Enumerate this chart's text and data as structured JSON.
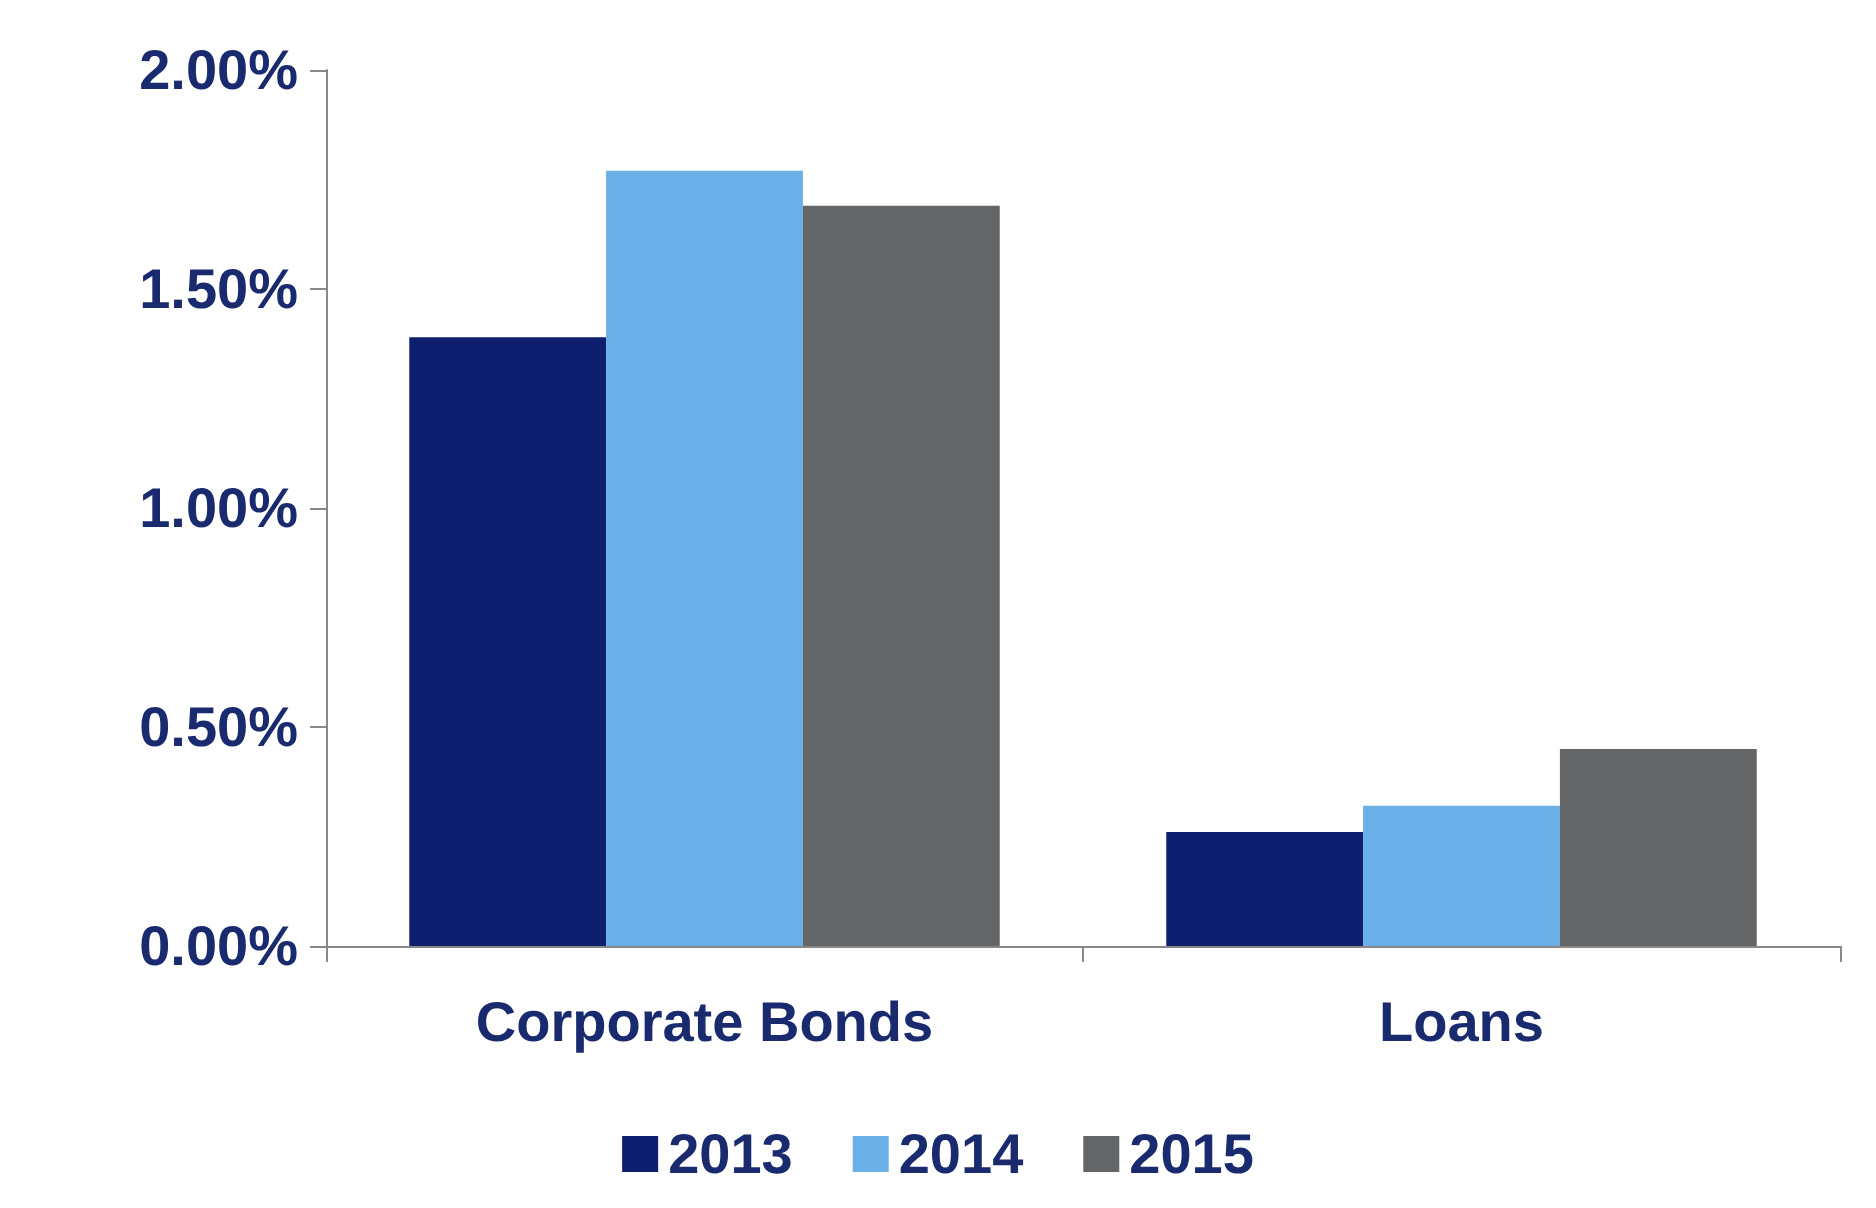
{
  "chart_data": {
    "type": "bar",
    "categories": [
      "Corporate Bonds",
      "Loans"
    ],
    "series": [
      {
        "name": "2013",
        "color": "#0d1f6e",
        "values": [
          1.39,
          0.26
        ]
      },
      {
        "name": "2014",
        "color": "#6ab0e6",
        "values": [
          1.77,
          0.32
        ]
      },
      {
        "name": "2015",
        "color": "#646567",
        "values": [
          1.69,
          0.45
        ]
      }
    ],
    "ylim": [
      0,
      2
    ],
    "yticks": [
      {
        "value": 0,
        "label": "0.00%"
      },
      {
        "value": 0.5,
        "label": "0.50%"
      },
      {
        "value": 1,
        "label": "1.00%"
      },
      {
        "value": 1.5,
        "label": "1.50%"
      },
      {
        "value": 2,
        "label": "2.00%"
      }
    ],
    "grid": false,
    "legend": "bottom"
  }
}
